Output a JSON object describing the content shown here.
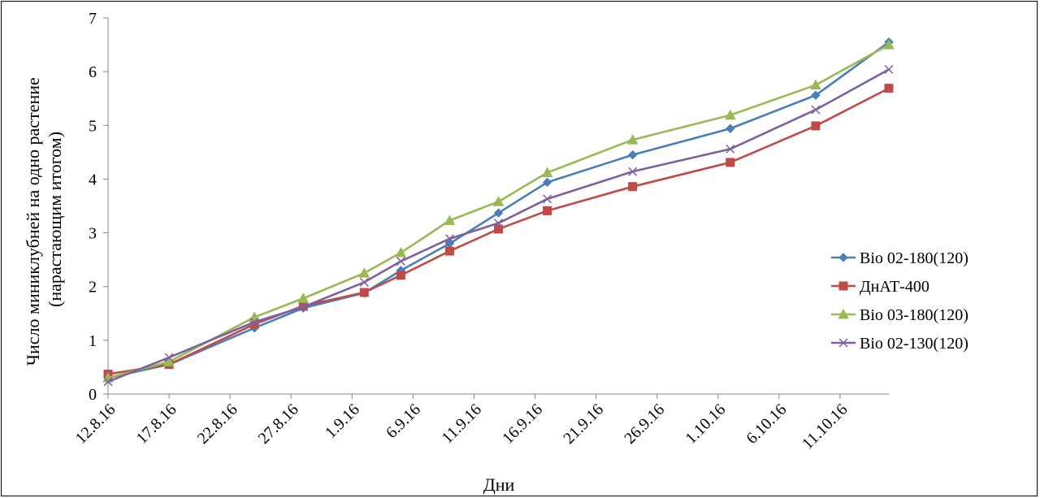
{
  "chart_data": {
    "type": "line",
    "title": "",
    "xlabel": "Дни",
    "ylabel_line1": "Число миниклубней на одно растение",
    "ylabel_line2": "(нарастающим итогом)",
    "x_ticks": [
      "12.8.16",
      "17.8.16",
      "22.8.16",
      "27.8.16",
      "1.9.16",
      "6.9.16",
      "11.9.16",
      "16.9.16",
      "21.9.16",
      "26.9.16",
      "1.10.16",
      "6.10.16",
      "11.10.16"
    ],
    "y_ticks": [
      "0",
      "1",
      "2",
      "3",
      "4",
      "5",
      "6",
      "7"
    ],
    "ylim": [
      0,
      7
    ],
    "xlim": [
      "2016-08-12",
      "2016-10-15"
    ],
    "grid": false,
    "legend_position": "right",
    "series": [
      {
        "name": "Bio 02-180(120)",
        "color": "#4A7EBB",
        "marker": "diamond",
        "points": [
          {
            "x": "2016-08-12",
            "y": 0.3
          },
          {
            "x": "2016-08-17",
            "y": 0.55
          },
          {
            "x": "2016-08-24",
            "y": 1.23
          },
          {
            "x": "2016-08-28",
            "y": 1.6
          },
          {
            "x": "2016-09-02",
            "y": 1.88
          },
          {
            "x": "2016-09-05",
            "y": 2.3
          },
          {
            "x": "2016-09-09",
            "y": 2.8
          },
          {
            "x": "2016-09-13",
            "y": 3.37
          },
          {
            "x": "2016-09-17",
            "y": 3.94
          },
          {
            "x": "2016-09-24",
            "y": 4.45
          },
          {
            "x": "2016-10-02",
            "y": 4.94
          },
          {
            "x": "2016-10-09",
            "y": 5.56
          },
          {
            "x": "2016-10-15",
            "y": 6.55
          }
        ]
      },
      {
        "name": "ДнАТ-400",
        "color": "#BE4B48",
        "marker": "square",
        "points": [
          {
            "x": "2016-08-12",
            "y": 0.37
          },
          {
            "x": "2016-08-17",
            "y": 0.55
          },
          {
            "x": "2016-08-24",
            "y": 1.3
          },
          {
            "x": "2016-08-28",
            "y": 1.64
          },
          {
            "x": "2016-09-02",
            "y": 1.89
          },
          {
            "x": "2016-09-05",
            "y": 2.21
          },
          {
            "x": "2016-09-09",
            "y": 2.66
          },
          {
            "x": "2016-09-13",
            "y": 3.07
          },
          {
            "x": "2016-09-17",
            "y": 3.41
          },
          {
            "x": "2016-09-24",
            "y": 3.86
          },
          {
            "x": "2016-10-02",
            "y": 4.31
          },
          {
            "x": "2016-10-09",
            "y": 4.99
          },
          {
            "x": "2016-10-15",
            "y": 5.69
          }
        ]
      },
      {
        "name": "Bio 03-180(120)",
        "color": "#98B954",
        "marker": "triangle",
        "points": [
          {
            "x": "2016-08-12",
            "y": 0.3
          },
          {
            "x": "2016-08-17",
            "y": 0.6
          },
          {
            "x": "2016-08-24",
            "y": 1.43
          },
          {
            "x": "2016-08-28",
            "y": 1.78
          },
          {
            "x": "2016-09-02",
            "y": 2.25
          },
          {
            "x": "2016-09-05",
            "y": 2.63
          },
          {
            "x": "2016-09-09",
            "y": 3.23
          },
          {
            "x": "2016-09-13",
            "y": 3.58
          },
          {
            "x": "2016-09-17",
            "y": 4.12
          },
          {
            "x": "2016-09-24",
            "y": 4.73
          },
          {
            "x": "2016-10-02",
            "y": 5.19
          },
          {
            "x": "2016-10-09",
            "y": 5.75
          },
          {
            "x": "2016-10-15",
            "y": 6.5
          }
        ]
      },
      {
        "name": "Bio 02-130(120)",
        "color": "#7D60A0",
        "marker": "x",
        "points": [
          {
            "x": "2016-08-12",
            "y": 0.23
          },
          {
            "x": "2016-08-17",
            "y": 0.68
          },
          {
            "x": "2016-08-24",
            "y": 1.34
          },
          {
            "x": "2016-08-28",
            "y": 1.62
          },
          {
            "x": "2016-09-02",
            "y": 2.08
          },
          {
            "x": "2016-09-05",
            "y": 2.47
          },
          {
            "x": "2016-09-09",
            "y": 2.89
          },
          {
            "x": "2016-09-13",
            "y": 3.18
          },
          {
            "x": "2016-09-17",
            "y": 3.63
          },
          {
            "x": "2016-09-24",
            "y": 4.14
          },
          {
            "x": "2016-10-02",
            "y": 4.56
          },
          {
            "x": "2016-10-09",
            "y": 5.29
          },
          {
            "x": "2016-10-15",
            "y": 6.04
          }
        ]
      }
    ]
  }
}
